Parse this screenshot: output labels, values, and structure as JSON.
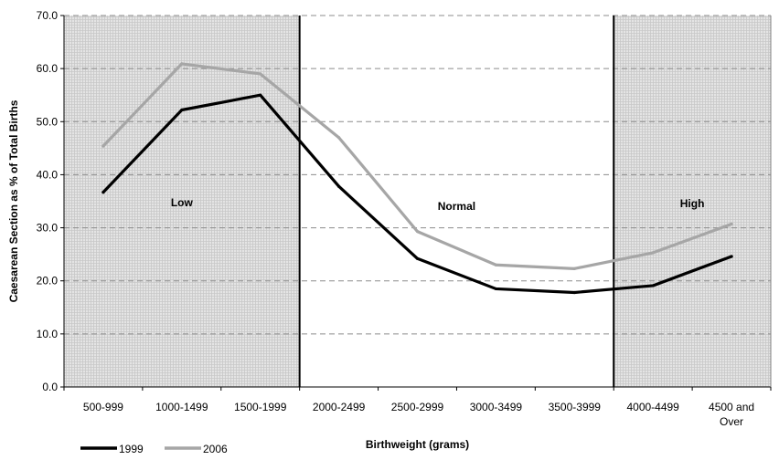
{
  "chart_data": {
    "type": "line",
    "title": "",
    "xlabel": "Birthweight (grams)",
    "ylabel": "Caesarean Section as % of Total Births",
    "ylim": [
      0,
      70
    ],
    "ytick_step": 10,
    "categories": [
      "500-999",
      "1000-1499",
      "1500-1999",
      "2000-2499",
      "2500-2999",
      "3000-3499",
      "3500-3999",
      "4000-4499",
      "4500 and Over"
    ],
    "series": [
      {
        "name": "1999",
        "color": "#000000",
        "values": [
          36.7,
          52.2,
          55.0,
          37.8,
          24.2,
          18.5,
          17.8,
          19.1,
          24.6
        ]
      },
      {
        "name": "2006",
        "color": "#a6a6a6",
        "values": [
          45.4,
          60.9,
          59.0,
          47.0,
          29.3,
          23.0,
          22.3,
          25.3,
          30.7
        ]
      }
    ],
    "regions": [
      {
        "label": "Low",
        "shaded": true
      },
      {
        "label": "Normal",
        "shaded": false
      },
      {
        "label": "High",
        "shaded": true
      }
    ],
    "grid": true,
    "legend": "bottom-left"
  }
}
